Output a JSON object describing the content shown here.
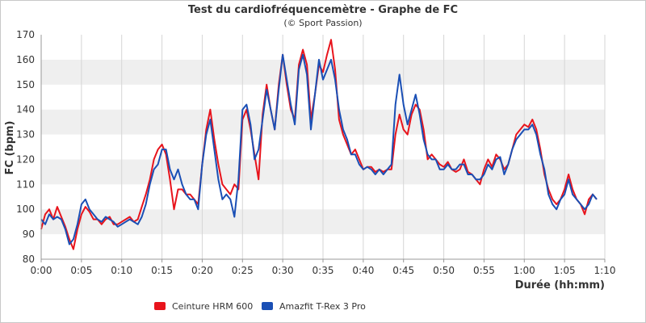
{
  "chart_data": {
    "type": "line",
    "title": "Test du cardiofréquencemètre - Graphe de FC",
    "subtitle": "(© Sport Passion)",
    "xlabel": "Durée (hh:mm)",
    "ylabel": "FC (bpm)",
    "xlim": [
      0,
      70
    ],
    "ylim": [
      80,
      170
    ],
    "x_ticks": [
      "0:00",
      "0:05",
      "0:10",
      "0:15",
      "0:20",
      "0:25",
      "0:30",
      "0:35",
      "0:40",
      "0:45",
      "0:50",
      "0:55",
      "1:00",
      "1:05",
      "1:10"
    ],
    "y_ticks": [
      "80",
      "90",
      "100",
      "110",
      "120",
      "130",
      "140",
      "150",
      "160",
      "170"
    ],
    "grid": "horizontal bands + vertical lines",
    "legend_position": "bottom",
    "x_unit_minutes_per_tick": 5,
    "series": [
      {
        "name": "Ceinture HRM 600",
        "color": "#e8141c",
        "points": [
          [
            0,
            92
          ],
          [
            0.5,
            98
          ],
          [
            1,
            100
          ],
          [
            1.5,
            96
          ],
          [
            2,
            101
          ],
          [
            2.5,
            97
          ],
          [
            3,
            93
          ],
          [
            3.5,
            88
          ],
          [
            4,
            84
          ],
          [
            4.5,
            92
          ],
          [
            5,
            98
          ],
          [
            5.5,
            101
          ],
          [
            6,
            99
          ],
          [
            6.5,
            96
          ],
          [
            7,
            96
          ],
          [
            7.5,
            94
          ],
          [
            8,
            96
          ],
          [
            8.5,
            97
          ],
          [
            9,
            94
          ],
          [
            9.5,
            94
          ],
          [
            10,
            95
          ],
          [
            10.5,
            96
          ],
          [
            11,
            97
          ],
          [
            11.5,
            95
          ],
          [
            12,
            96
          ],
          [
            12.5,
            101
          ],
          [
            13,
            106
          ],
          [
            13.5,
            112
          ],
          [
            14,
            120
          ],
          [
            14.5,
            124
          ],
          [
            15,
            126
          ],
          [
            15.5,
            122
          ],
          [
            16,
            112
          ],
          [
            16.5,
            100
          ],
          [
            17,
            108
          ],
          [
            17.5,
            108
          ],
          [
            18,
            106
          ],
          [
            18.5,
            106
          ],
          [
            19,
            104
          ],
          [
            19.5,
            102
          ],
          [
            20,
            118
          ],
          [
            20.5,
            132
          ],
          [
            21,
            140
          ],
          [
            21.5,
            128
          ],
          [
            22,
            118
          ],
          [
            22.5,
            110
          ],
          [
            23,
            108
          ],
          [
            23.5,
            106
          ],
          [
            24,
            110
          ],
          [
            24.5,
            108
          ],
          [
            25,
            136
          ],
          [
            25.5,
            140
          ],
          [
            26,
            132
          ],
          [
            26.5,
            122
          ],
          [
            27,
            112
          ],
          [
            27.5,
            138
          ],
          [
            28,
            150
          ],
          [
            28.5,
            140
          ],
          [
            29,
            132
          ],
          [
            29.5,
            150
          ],
          [
            30,
            162
          ],
          [
            30.5,
            150
          ],
          [
            31,
            140
          ],
          [
            31.5,
            136
          ],
          [
            32,
            158
          ],
          [
            32.5,
            164
          ],
          [
            33,
            158
          ],
          [
            33.5,
            136
          ],
          [
            34,
            146
          ],
          [
            34.5,
            158
          ],
          [
            35,
            155
          ],
          [
            35.5,
            162
          ],
          [
            36,
            168
          ],
          [
            36.5,
            156
          ],
          [
            37,
            136
          ],
          [
            37.5,
            130
          ],
          [
            38,
            126
          ],
          [
            38.5,
            122
          ],
          [
            39,
            124
          ],
          [
            39.5,
            120
          ],
          [
            40,
            116
          ],
          [
            40.5,
            117
          ],
          [
            41,
            117
          ],
          [
            41.5,
            115
          ],
          [
            42,
            116
          ],
          [
            42.5,
            115
          ],
          [
            43,
            116
          ],
          [
            43.5,
            116
          ],
          [
            44,
            130
          ],
          [
            44.5,
            138
          ],
          [
            45,
            132
          ],
          [
            45.5,
            130
          ],
          [
            46,
            138
          ],
          [
            46.5,
            142
          ],
          [
            47,
            140
          ],
          [
            47.5,
            132
          ],
          [
            48,
            120
          ],
          [
            48.5,
            122
          ],
          [
            49,
            120
          ],
          [
            49.5,
            118
          ],
          [
            50,
            117
          ],
          [
            50.5,
            119
          ],
          [
            51,
            116
          ],
          [
            51.5,
            115
          ],
          [
            52,
            116
          ],
          [
            52.5,
            120
          ],
          [
            53,
            115
          ],
          [
            53.5,
            114
          ],
          [
            54,
            112
          ],
          [
            54.5,
            110
          ],
          [
            55,
            116
          ],
          [
            55.5,
            120
          ],
          [
            56,
            117
          ],
          [
            56.5,
            122
          ],
          [
            57,
            120
          ],
          [
            57.5,
            116
          ],
          [
            58,
            118
          ],
          [
            58.5,
            124
          ],
          [
            59,
            130
          ],
          [
            59.5,
            132
          ],
          [
            60,
            134
          ],
          [
            60.5,
            133
          ],
          [
            61,
            136
          ],
          [
            61.5,
            132
          ],
          [
            62,
            124
          ],
          [
            62.5,
            114
          ],
          [
            63,
            108
          ],
          [
            63.5,
            104
          ],
          [
            64,
            102
          ],
          [
            64.5,
            104
          ],
          [
            65,
            108
          ],
          [
            65.5,
            114
          ],
          [
            66,
            108
          ],
          [
            66.5,
            104
          ],
          [
            67,
            102
          ],
          [
            67.5,
            98
          ],
          [
            68,
            104
          ],
          [
            68.5,
            106
          ],
          [
            69,
            104
          ]
        ]
      },
      {
        "name": "Amazfit T-Rex 3 Pro",
        "color": "#1a4fb5",
        "points": [
          [
            0,
            96
          ],
          [
            0.5,
            94
          ],
          [
            1,
            98
          ],
          [
            1.5,
            96
          ],
          [
            2,
            97
          ],
          [
            2.5,
            96
          ],
          [
            3,
            92
          ],
          [
            3.5,
            86
          ],
          [
            4,
            88
          ],
          [
            4.5,
            94
          ],
          [
            5,
            102
          ],
          [
            5.5,
            104
          ],
          [
            6,
            100
          ],
          [
            6.5,
            98
          ],
          [
            7,
            96
          ],
          [
            7.5,
            95
          ],
          [
            8,
            97
          ],
          [
            8.5,
            96
          ],
          [
            9,
            95
          ],
          [
            9.5,
            93
          ],
          [
            10,
            94
          ],
          [
            10.5,
            95
          ],
          [
            11,
            96
          ],
          [
            11.5,
            95
          ],
          [
            12,
            94
          ],
          [
            12.5,
            97
          ],
          [
            13,
            102
          ],
          [
            13.5,
            110
          ],
          [
            14,
            116
          ],
          [
            14.5,
            118
          ],
          [
            15,
            124
          ],
          [
            15.5,
            124
          ],
          [
            16,
            116
          ],
          [
            16.5,
            112
          ],
          [
            17,
            116
          ],
          [
            17.5,
            110
          ],
          [
            18,
            106
          ],
          [
            18.5,
            104
          ],
          [
            19,
            104
          ],
          [
            19.5,
            100
          ],
          [
            20,
            118
          ],
          [
            20.5,
            130
          ],
          [
            21,
            136
          ],
          [
            21.5,
            124
          ],
          [
            22,
            112
          ],
          [
            22.5,
            104
          ],
          [
            23,
            106
          ],
          [
            23.5,
            104
          ],
          [
            24,
            97
          ],
          [
            24.5,
            112
          ],
          [
            25,
            140
          ],
          [
            25.5,
            142
          ],
          [
            26,
            134
          ],
          [
            26.5,
            120
          ],
          [
            27,
            124
          ],
          [
            27.5,
            136
          ],
          [
            28,
            148
          ],
          [
            28.5,
            140
          ],
          [
            29,
            132
          ],
          [
            29.5,
            148
          ],
          [
            30,
            162
          ],
          [
            30.5,
            152
          ],
          [
            31,
            142
          ],
          [
            31.5,
            134
          ],
          [
            32,
            156
          ],
          [
            32.5,
            162
          ],
          [
            33,
            154
          ],
          [
            33.5,
            132
          ],
          [
            34,
            146
          ],
          [
            34.5,
            160
          ],
          [
            35,
            152
          ],
          [
            35.5,
            156
          ],
          [
            36,
            160
          ],
          [
            36.5,
            152
          ],
          [
            37,
            140
          ],
          [
            37.5,
            132
          ],
          [
            38,
            128
          ],
          [
            38.5,
            122
          ],
          [
            39,
            122
          ],
          [
            39.5,
            118
          ],
          [
            40,
            116
          ],
          [
            40.5,
            117
          ],
          [
            41,
            116
          ],
          [
            41.5,
            114
          ],
          [
            42,
            116
          ],
          [
            42.5,
            114
          ],
          [
            43,
            116
          ],
          [
            43.5,
            118
          ],
          [
            44,
            142
          ],
          [
            44.5,
            154
          ],
          [
            45,
            142
          ],
          [
            45.5,
            134
          ],
          [
            46,
            140
          ],
          [
            46.5,
            146
          ],
          [
            47,
            138
          ],
          [
            47.5,
            128
          ],
          [
            48,
            122
          ],
          [
            48.5,
            120
          ],
          [
            49,
            120
          ],
          [
            49.5,
            116
          ],
          [
            50,
            116
          ],
          [
            50.5,
            118
          ],
          [
            51,
            116
          ],
          [
            51.5,
            116
          ],
          [
            52,
            118
          ],
          [
            52.5,
            118
          ],
          [
            53,
            114
          ],
          [
            53.5,
            114
          ],
          [
            54,
            112
          ],
          [
            54.5,
            112
          ],
          [
            55,
            114
          ],
          [
            55.5,
            118
          ],
          [
            56,
            116
          ],
          [
            56.5,
            120
          ],
          [
            57,
            121
          ],
          [
            57.5,
            114
          ],
          [
            58,
            118
          ],
          [
            58.5,
            124
          ],
          [
            59,
            128
          ],
          [
            59.5,
            130
          ],
          [
            60,
            132
          ],
          [
            60.5,
            132
          ],
          [
            61,
            134
          ],
          [
            61.5,
            130
          ],
          [
            62,
            122
          ],
          [
            62.5,
            116
          ],
          [
            63,
            106
          ],
          [
            63.5,
            102
          ],
          [
            64,
            100
          ],
          [
            64.5,
            104
          ],
          [
            65,
            106
          ],
          [
            65.5,
            112
          ],
          [
            66,
            106
          ],
          [
            66.5,
            104
          ],
          [
            67,
            102
          ],
          [
            67.5,
            100
          ],
          [
            68,
            102
          ],
          [
            68.5,
            106
          ],
          [
            69,
            104
          ]
        ]
      }
    ]
  }
}
